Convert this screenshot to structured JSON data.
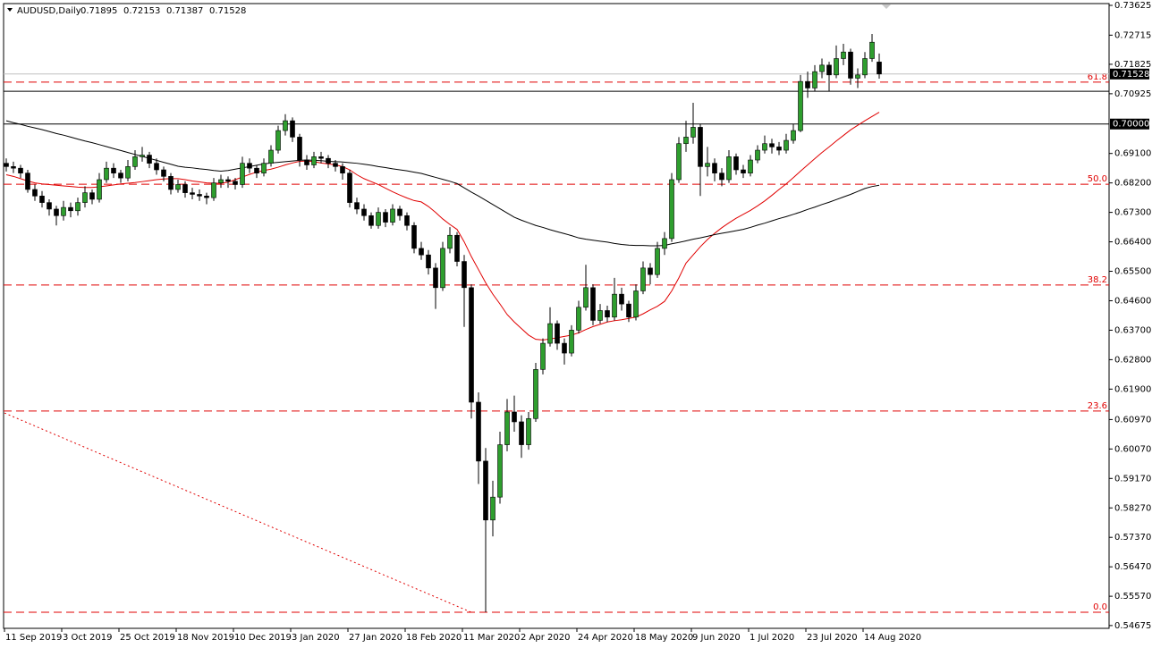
{
  "chart_data": {
    "type": "candlestick",
    "symbol": "AUDUSD,Daily",
    "categories": [
      "11 Sep 2019",
      null,
      null,
      null,
      null,
      null,
      null,
      null,
      "3 Oct 2019",
      null,
      null,
      null,
      null,
      null,
      null,
      null,
      "25 Oct 2019",
      null,
      null,
      null,
      null,
      null,
      null,
      null,
      "18 Nov 2019",
      null,
      null,
      null,
      null,
      null,
      null,
      null,
      "10 Dec 2019",
      null,
      null,
      null,
      null,
      null,
      null,
      null,
      "3 Jan 2020",
      null,
      null,
      null,
      null,
      null,
      null,
      null,
      "27 Jan 2020",
      null,
      null,
      null,
      null,
      null,
      null,
      null,
      "18 Feb 2020",
      null,
      null,
      null,
      null,
      null,
      null,
      null,
      "11 Mar 2020",
      null,
      null,
      null,
      null,
      null,
      null,
      null,
      "2 Apr 2020",
      null,
      null,
      null,
      null,
      null,
      null,
      null,
      "24 Apr 2020",
      null,
      null,
      null,
      null,
      null,
      null,
      null,
      "18 May 2020",
      null,
      null,
      null,
      null,
      null,
      null,
      null,
      "9 Jun 2020",
      null,
      null,
      null,
      null,
      null,
      null,
      null,
      "1 Jul 2020",
      null,
      null,
      null,
      null,
      null,
      null,
      null,
      "23 Jul 2020",
      null,
      null,
      null,
      null,
      null,
      null,
      null,
      "14 Aug 2020",
      null,
      null
    ],
    "candles": [
      [
        0.688,
        0.6895,
        0.6855,
        0.687
      ],
      [
        0.687,
        0.6885,
        0.685,
        0.6865
      ],
      [
        0.6865,
        0.6875,
        0.6835,
        0.685
      ],
      [
        0.685,
        0.686,
        0.679,
        0.68
      ],
      [
        0.68,
        0.6815,
        0.6765,
        0.678
      ],
      [
        0.678,
        0.6795,
        0.6745,
        0.676
      ],
      [
        0.676,
        0.677,
        0.672,
        0.674
      ],
      [
        0.674,
        0.675,
        0.669,
        0.672
      ],
      [
        0.672,
        0.6765,
        0.6705,
        0.6745
      ],
      [
        0.6745,
        0.676,
        0.6715,
        0.6735
      ],
      [
        0.6735,
        0.6775,
        0.672,
        0.676
      ],
      [
        0.676,
        0.681,
        0.6745,
        0.679
      ],
      [
        0.679,
        0.68,
        0.6755,
        0.677
      ],
      [
        0.677,
        0.685,
        0.676,
        0.683
      ],
      [
        0.683,
        0.6885,
        0.682,
        0.6865
      ],
      [
        0.6865,
        0.688,
        0.6835,
        0.685
      ],
      [
        0.685,
        0.686,
        0.682,
        0.6835
      ],
      [
        0.6835,
        0.689,
        0.6825,
        0.687
      ],
      [
        0.687,
        0.692,
        0.686,
        0.69
      ],
      [
        0.69,
        0.693,
        0.6885,
        0.6905
      ],
      [
        0.6905,
        0.6915,
        0.6865,
        0.688
      ],
      [
        0.688,
        0.6895,
        0.6845,
        0.686
      ],
      [
        0.686,
        0.687,
        0.6825,
        0.684
      ],
      [
        0.684,
        0.685,
        0.6785,
        0.68
      ],
      [
        0.68,
        0.683,
        0.679,
        0.6815
      ],
      [
        0.6815,
        0.6825,
        0.6775,
        0.679
      ],
      [
        0.679,
        0.6805,
        0.677,
        0.6785
      ],
      [
        0.6785,
        0.68,
        0.6765,
        0.678
      ],
      [
        0.678,
        0.679,
        0.6755,
        0.6775
      ],
      [
        0.6775,
        0.6835,
        0.6765,
        0.682
      ],
      [
        0.682,
        0.6845,
        0.6805,
        0.683
      ],
      [
        0.683,
        0.684,
        0.6805,
        0.6825
      ],
      [
        0.6825,
        0.6835,
        0.68,
        0.6815
      ],
      [
        0.6815,
        0.69,
        0.6805,
        0.688
      ],
      [
        0.688,
        0.6895,
        0.685,
        0.6865
      ],
      [
        0.6865,
        0.6875,
        0.6835,
        0.685
      ],
      [
        0.685,
        0.6895,
        0.684,
        0.688
      ],
      [
        0.688,
        0.6935,
        0.687,
        0.692
      ],
      [
        0.692,
        0.6995,
        0.691,
        0.698
      ],
      [
        0.698,
        0.703,
        0.6965,
        0.701
      ],
      [
        0.701,
        0.702,
        0.6945,
        0.696
      ],
      [
        0.696,
        0.697,
        0.687,
        0.689
      ],
      [
        0.689,
        0.6905,
        0.686,
        0.6875
      ],
      [
        0.6875,
        0.6915,
        0.6865,
        0.69
      ],
      [
        0.69,
        0.6915,
        0.688,
        0.6895
      ],
      [
        0.6895,
        0.6905,
        0.6865,
        0.688
      ],
      [
        0.688,
        0.689,
        0.6855,
        0.687
      ],
      [
        0.687,
        0.688,
        0.683,
        0.685
      ],
      [
        0.685,
        0.686,
        0.6745,
        0.676
      ],
      [
        0.676,
        0.6775,
        0.6725,
        0.674
      ],
      [
        0.674,
        0.6755,
        0.6705,
        0.672
      ],
      [
        0.672,
        0.673,
        0.668,
        0.669
      ],
      [
        0.669,
        0.6745,
        0.668,
        0.673
      ],
      [
        0.673,
        0.674,
        0.6685,
        0.67
      ],
      [
        0.67,
        0.6755,
        0.669,
        0.674
      ],
      [
        0.674,
        0.675,
        0.6705,
        0.672
      ],
      [
        0.672,
        0.673,
        0.6675,
        0.669
      ],
      [
        0.669,
        0.67,
        0.6605,
        0.662
      ],
      [
        0.662,
        0.664,
        0.6585,
        0.66
      ],
      [
        0.66,
        0.6615,
        0.654,
        0.656
      ],
      [
        0.656,
        0.6575,
        0.6435,
        0.65
      ],
      [
        0.65,
        0.664,
        0.649,
        0.662
      ],
      [
        0.662,
        0.6685,
        0.6605,
        0.666
      ],
      [
        0.666,
        0.667,
        0.6565,
        0.658
      ],
      [
        0.658,
        0.66,
        0.638,
        0.65
      ],
      [
        0.65,
        0.651,
        0.61,
        0.615
      ],
      [
        0.615,
        0.618,
        0.59,
        0.597
      ],
      [
        0.597,
        0.601,
        0.5508,
        0.579
      ],
      [
        0.579,
        0.591,
        0.574,
        0.586
      ],
      [
        0.586,
        0.606,
        0.584,
        0.602
      ],
      [
        0.602,
        0.616,
        0.6,
        0.612
      ],
      [
        0.612,
        0.617,
        0.606,
        0.609
      ],
      [
        0.609,
        0.611,
        0.598,
        0.602
      ],
      [
        0.602,
        0.612,
        0.6005,
        0.61
      ],
      [
        0.61,
        0.627,
        0.609,
        0.625
      ],
      [
        0.625,
        0.6345,
        0.6235,
        0.633
      ],
      [
        0.633,
        0.644,
        0.632,
        0.639
      ],
      [
        0.639,
        0.64,
        0.631,
        0.633
      ],
      [
        0.633,
        0.6345,
        0.6265,
        0.63
      ],
      [
        0.63,
        0.6385,
        0.629,
        0.637
      ],
      [
        0.637,
        0.646,
        0.636,
        0.644
      ],
      [
        0.644,
        0.657,
        0.643,
        0.65
      ],
      [
        0.65,
        0.651,
        0.6385,
        0.64
      ],
      [
        0.64,
        0.645,
        0.639,
        0.643
      ],
      [
        0.643,
        0.6445,
        0.6395,
        0.641
      ],
      [
        0.641,
        0.653,
        0.64,
        0.648
      ],
      [
        0.648,
        0.65,
        0.643,
        0.645
      ],
      [
        0.645,
        0.646,
        0.6395,
        0.641
      ],
      [
        0.641,
        0.651,
        0.64,
        0.649
      ],
      [
        0.649,
        0.658,
        0.648,
        0.656
      ],
      [
        0.656,
        0.6575,
        0.651,
        0.654
      ],
      [
        0.654,
        0.664,
        0.653,
        0.662
      ],
      [
        0.662,
        0.667,
        0.66,
        0.665
      ],
      [
        0.665,
        0.685,
        0.664,
        0.683
      ],
      [
        0.683,
        0.696,
        0.682,
        0.694
      ],
      [
        0.694,
        0.701,
        0.6915,
        0.696
      ],
      [
        0.696,
        0.7065,
        0.694,
        0.699
      ],
      [
        0.699,
        0.7,
        0.678,
        0.687
      ],
      [
        0.687,
        0.693,
        0.684,
        0.688
      ],
      [
        0.688,
        0.6895,
        0.6825,
        0.685
      ],
      [
        0.685,
        0.6865,
        0.681,
        0.683
      ],
      [
        0.683,
        0.692,
        0.682,
        0.69
      ],
      [
        0.69,
        0.691,
        0.6845,
        0.686
      ],
      [
        0.686,
        0.6875,
        0.6835,
        0.685
      ],
      [
        0.685,
        0.6905,
        0.684,
        0.689
      ],
      [
        0.689,
        0.6935,
        0.688,
        0.692
      ],
      [
        0.692,
        0.6965,
        0.691,
        0.694
      ],
      [
        0.694,
        0.6955,
        0.691,
        0.693
      ],
      [
        0.693,
        0.6945,
        0.6905,
        0.692
      ],
      [
        0.692,
        0.697,
        0.691,
        0.695
      ],
      [
        0.695,
        0.7,
        0.694,
        0.698
      ],
      [
        0.698,
        0.715,
        0.6975,
        0.713
      ],
      [
        0.713,
        0.716,
        0.708,
        0.711
      ],
      [
        0.711,
        0.718,
        0.71,
        0.716
      ],
      [
        0.716,
        0.72,
        0.714,
        0.718
      ],
      [
        0.718,
        0.719,
        0.71,
        0.715
      ],
      [
        0.715,
        0.724,
        0.714,
        0.72
      ],
      [
        0.72,
        0.7245,
        0.718,
        0.722
      ],
      [
        0.722,
        0.723,
        0.712,
        0.714
      ],
      [
        0.714,
        0.717,
        0.711,
        0.715
      ],
      [
        0.715,
        0.722,
        0.714,
        0.72
      ],
      [
        0.72,
        0.7275,
        0.719,
        0.725
      ],
      [
        0.71895,
        0.72153,
        0.71387,
        0.71528
      ]
    ],
    "up_color": "#2e9e2e",
    "down_color": "#000000",
    "moving_averages": [
      {
        "color": "#e00000",
        "values": [
          0.6845,
          0.684,
          0.6833,
          0.6826,
          0.682,
          0.6817,
          0.6815,
          0.6813,
          0.6811,
          0.6809,
          0.6807,
          0.6806,
          0.6806,
          0.6808,
          0.6811,
          0.6814,
          0.6817,
          0.6819,
          0.6821,
          0.6824,
          0.6827,
          0.683,
          0.6832,
          0.6833,
          0.6833,
          0.683,
          0.6826,
          0.6823,
          0.682,
          0.6819,
          0.6819,
          0.6822,
          0.683,
          0.6838,
          0.6846,
          0.6853,
          0.6858,
          0.6862,
          0.6868,
          0.6875,
          0.6881,
          0.6886,
          0.6887,
          0.6885,
          0.6881,
          0.6878,
          0.6875,
          0.687,
          0.686,
          0.6845,
          0.6833,
          0.6824,
          0.6815,
          0.6804,
          0.6793,
          0.6783,
          0.6774,
          0.6766,
          0.6762,
          0.6748,
          0.673,
          0.671,
          0.6693,
          0.6678,
          0.664,
          0.6595,
          0.6555,
          0.6515,
          0.648,
          0.645,
          0.6418,
          0.6395,
          0.6375,
          0.6355,
          0.6342,
          0.634,
          0.6343,
          0.6347,
          0.6351,
          0.6355,
          0.6362,
          0.6372,
          0.6381,
          0.6388,
          0.6395,
          0.6399,
          0.6402,
          0.6406,
          0.641,
          0.642,
          0.6432,
          0.6443,
          0.6458,
          0.649,
          0.653,
          0.6575,
          0.66,
          0.6625,
          0.6647,
          0.6666,
          0.6683,
          0.6698,
          0.6712,
          0.6724,
          0.6736,
          0.675,
          0.6765,
          0.6782,
          0.68,
          0.6817,
          0.6836,
          0.6856,
          0.6875,
          0.6894,
          0.6913,
          0.693,
          0.6948,
          0.6965,
          0.6982,
          0.6996,
          0.701,
          0.7023,
          0.7036
        ]
      },
      {
        "color": "#000000",
        "values": [
          0.701,
          0.7004,
          0.6999,
          0.6993,
          0.6988,
          0.6983,
          0.6977,
          0.6971,
          0.6966,
          0.696,
          0.6954,
          0.6948,
          0.6943,
          0.6937,
          0.6931,
          0.6925,
          0.6919,
          0.6913,
          0.6907,
          0.6901,
          0.6895,
          0.6889,
          0.6883,
          0.6877,
          0.6871,
          0.6868,
          0.6866,
          0.6863,
          0.6861,
          0.6858,
          0.6856,
          0.6858,
          0.6862,
          0.6866,
          0.687,
          0.6874,
          0.6878,
          0.6881,
          0.6883,
          0.6885,
          0.6887,
          0.6889,
          0.689,
          0.6889,
          0.6888,
          0.6886,
          0.6885,
          0.6884,
          0.6882,
          0.688,
          0.6877,
          0.6874,
          0.687,
          0.6867,
          0.6863,
          0.686,
          0.6857,
          0.6853,
          0.6849,
          0.6843,
          0.6837,
          0.6831,
          0.6825,
          0.6818,
          0.6805,
          0.6792,
          0.678,
          0.6767,
          0.6754,
          0.6741,
          0.6728,
          0.6715,
          0.6706,
          0.6698,
          0.669,
          0.6684,
          0.6677,
          0.6671,
          0.6665,
          0.6659,
          0.6652,
          0.6648,
          0.6645,
          0.6642,
          0.6639,
          0.6635,
          0.6632,
          0.663,
          0.6629,
          0.6629,
          0.6628,
          0.6628,
          0.6629,
          0.6634,
          0.6638,
          0.6643,
          0.6648,
          0.6652,
          0.6657,
          0.6662,
          0.6666,
          0.667,
          0.6674,
          0.6678,
          0.6684,
          0.6691,
          0.6697,
          0.6704,
          0.6711,
          0.6717,
          0.6724,
          0.6731,
          0.6739,
          0.6746,
          0.6754,
          0.6761,
          0.6769,
          0.6777,
          0.6785,
          0.6794,
          0.6803,
          0.6809,
          0.6813
        ]
      }
    ],
    "levels": [
      {
        "value": 0.71
      },
      {
        "value": 0.7,
        "label": "0.70000"
      }
    ],
    "fib_levels": [
      {
        "value": 0.7128,
        "label": "61.8"
      },
      {
        "value": 0.6816,
        "label": "50.0"
      },
      {
        "value": 0.6508,
        "label": "38.2"
      },
      {
        "value": 0.6123,
        "label": "23.6"
      },
      {
        "value": 0.5508,
        "label": "0.0"
      }
    ],
    "fib_color": "#e00000",
    "trendline": {
      "x": [
        0,
        65
      ],
      "values": [
        0.6117,
        0.5508
      ],
      "color": "#e00000"
    },
    "ylim": [
      0.5459,
      0.7368
    ],
    "yticks": [
      0.73625,
      0.72715,
      0.71825,
      0.70925,
      {
        "value": 0.691,
        "label": "0.69100"
      },
      {
        "value": 0.682,
        "label": "0.68200"
      },
      {
        "value": 0.673,
        "label": "0.67300"
      },
      {
        "value": 0.664,
        "label": "0.66400"
      },
      {
        "value": 0.655,
        "label": "0.65500"
      },
      {
        "value": 0.646,
        "label": "0.64600"
      },
      {
        "value": 0.637,
        "label": "0.63700"
      },
      {
        "value": 0.628,
        "label": "0.62800"
      },
      {
        "value": 0.619,
        "label": "0.61900"
      },
      {
        "value": 0.6097,
        "label": "0.60970"
      },
      {
        "value": 0.6007,
        "label": "0.60070"
      },
      {
        "value": 0.5917,
        "label": "0.59170"
      },
      {
        "value": 0.5827,
        "label": "0.58270"
      },
      {
        "value": 0.5737,
        "label": "0.57370"
      },
      {
        "value": 0.5647,
        "label": "0.56470"
      },
      {
        "value": 0.5557,
        "label": "0.55570"
      },
      0.54675
    ]
  }
}
